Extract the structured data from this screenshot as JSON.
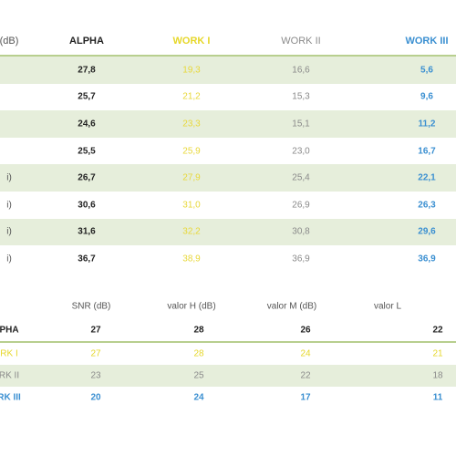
{
  "top_table": {
    "headers": [
      "(dB)",
      "ALPHA",
      "WORK I",
      "WORK II",
      "WORK III"
    ],
    "rows": [
      [
        "",
        "27,8",
        "19,3",
        "16,6",
        "5,6"
      ],
      [
        "",
        "25,7",
        "21,2",
        "15,3",
        "9,6"
      ],
      [
        "",
        "24,6",
        "23,3",
        "15,1",
        "11,2"
      ],
      [
        "",
        "25,5",
        "25,9",
        "23,0",
        "16,7"
      ],
      [
        "i)",
        "26,7",
        "27,9",
        "25,4",
        "22,1"
      ],
      [
        "i)",
        "30,6",
        "31,0",
        "26,9",
        "26,3"
      ],
      [
        "i)",
        "31,6",
        "32,2",
        "30,8",
        "29,6"
      ],
      [
        "i)",
        "36,7",
        "38,9",
        "36,9",
        "36,9"
      ]
    ]
  },
  "bottom_table": {
    "headers": [
      "",
      "SNR (dB)",
      "valor H (dB)",
      "valor M (dB)",
      "valor L"
    ],
    "rows": [
      {
        "key": "alpha",
        "cells": [
          "PHA",
          "27",
          "28",
          "26",
          "22"
        ]
      },
      {
        "key": "work1",
        "cells": [
          "RK I",
          "27",
          "28",
          "24",
          "21"
        ]
      },
      {
        "key": "work2",
        "cells": [
          "RK II",
          "23",
          "25",
          "22",
          "18"
        ]
      },
      {
        "key": "work3",
        "cells": [
          "RK III",
          "20",
          "24",
          "17",
          "11"
        ]
      }
    ]
  },
  "colors": {
    "shade": "#e6eedb",
    "rule": "#b8cf8f",
    "alpha": "#222222",
    "work1": "#e6d72a",
    "work2": "#8a8a8a",
    "work3": "#3a8fd1"
  }
}
